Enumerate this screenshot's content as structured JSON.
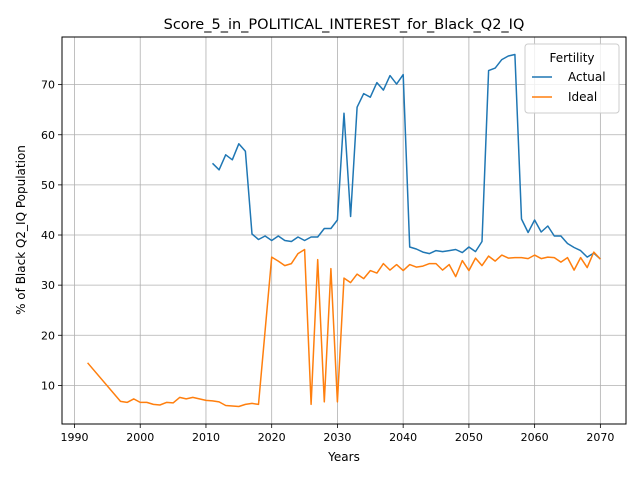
{
  "chart_data": {
    "type": "line",
    "title": "Score_5_in_POLITICAL_INTEREST_for_Black_Q2_IQ",
    "xlabel": "Years",
    "ylabel": "% of Black Q2_IQ Population",
    "xlim": [
      1988.1,
      2073.9
    ],
    "ylim": [
      2.3,
      79.5
    ],
    "xticks": [
      1990,
      2000,
      2010,
      2020,
      2030,
      2040,
      2050,
      2060,
      2070
    ],
    "yticks": [
      10,
      20,
      30,
      40,
      50,
      60,
      70
    ],
    "grid": true,
    "legend": {
      "title": "Fertility",
      "placement": "top-right"
    },
    "series": [
      {
        "name": "Actual",
        "color": "#1f77b4",
        "points": [
          [
            2011,
            54.3
          ],
          [
            2012,
            53.0
          ],
          [
            2013,
            56.0
          ],
          [
            2014,
            55.0
          ],
          [
            2015,
            58.2
          ],
          [
            2016,
            56.7
          ],
          [
            2017,
            40.2
          ],
          [
            2018,
            39.1
          ],
          [
            2019,
            39.8
          ],
          [
            2020,
            38.9
          ],
          [
            2021,
            39.8
          ],
          [
            2022,
            38.9
          ],
          [
            2023,
            38.7
          ],
          [
            2024,
            39.6
          ],
          [
            2025,
            38.9
          ],
          [
            2026,
            39.6
          ],
          [
            2027,
            39.6
          ],
          [
            2028,
            41.3
          ],
          [
            2029,
            41.3
          ],
          [
            2030,
            43.0
          ],
          [
            2031,
            64.3
          ],
          [
            2032,
            43.7
          ],
          [
            2033,
            65.5
          ],
          [
            2034,
            68.2
          ],
          [
            2035,
            67.5
          ],
          [
            2036,
            70.4
          ],
          [
            2037,
            68.9
          ],
          [
            2038,
            71.8
          ],
          [
            2039,
            70.1
          ],
          [
            2040,
            72.0
          ],
          [
            2041,
            37.6
          ],
          [
            2042,
            37.2
          ],
          [
            2043,
            36.6
          ],
          [
            2044,
            36.3
          ],
          [
            2045,
            36.9
          ],
          [
            2046,
            36.7
          ],
          [
            2047,
            36.9
          ],
          [
            2048,
            37.1
          ],
          [
            2049,
            36.5
          ],
          [
            2050,
            37.6
          ],
          [
            2051,
            36.7
          ],
          [
            2052,
            38.7
          ],
          [
            2053,
            72.8
          ],
          [
            2054,
            73.3
          ],
          [
            2055,
            75.0
          ],
          [
            2056,
            75.7
          ],
          [
            2057,
            76.0
          ],
          [
            2058,
            43.2
          ],
          [
            2059,
            40.5
          ],
          [
            2060,
            43.0
          ],
          [
            2061,
            40.6
          ],
          [
            2062,
            41.8
          ],
          [
            2063,
            39.8
          ],
          [
            2064,
            39.8
          ],
          [
            2065,
            38.3
          ],
          [
            2066,
            37.5
          ],
          [
            2067,
            36.9
          ],
          [
            2068,
            35.6
          ],
          [
            2069,
            36.4
          ],
          [
            2070,
            35.2
          ]
        ]
      },
      {
        "name": "Ideal",
        "color": "#ff7f0e",
        "points": [
          [
            1992,
            14.5
          ],
          [
            1997,
            6.8
          ],
          [
            1998,
            6.6
          ],
          [
            1999,
            7.3
          ],
          [
            2000,
            6.6
          ],
          [
            2001,
            6.6
          ],
          [
            2002,
            6.2
          ],
          [
            2003,
            6.1
          ],
          [
            2004,
            6.6
          ],
          [
            2005,
            6.5
          ],
          [
            2006,
            7.6
          ],
          [
            2007,
            7.3
          ],
          [
            2008,
            7.6
          ],
          [
            2009,
            7.3
          ],
          [
            2010,
            7.0
          ],
          [
            2011,
            6.9
          ],
          [
            2012,
            6.7
          ],
          [
            2013,
            6.0
          ],
          [
            2014,
            5.9
          ],
          [
            2015,
            5.8
          ],
          [
            2016,
            6.2
          ],
          [
            2017,
            6.4
          ],
          [
            2018,
            6.2
          ],
          [
            2020,
            35.6
          ],
          [
            2021,
            34.8
          ],
          [
            2022,
            33.9
          ],
          [
            2023,
            34.3
          ],
          [
            2024,
            36.3
          ],
          [
            2025,
            37.1
          ],
          [
            2026,
            6.2
          ],
          [
            2027,
            35.1
          ],
          [
            2028,
            6.7
          ],
          [
            2029,
            33.3
          ],
          [
            2030,
            6.7
          ],
          [
            2031,
            31.4
          ],
          [
            2032,
            30.5
          ],
          [
            2033,
            32.2
          ],
          [
            2034,
            31.3
          ],
          [
            2035,
            32.9
          ],
          [
            2036,
            32.4
          ],
          [
            2037,
            34.3
          ],
          [
            2038,
            33.0
          ],
          [
            2039,
            34.1
          ],
          [
            2040,
            32.9
          ],
          [
            2041,
            34.1
          ],
          [
            2042,
            33.6
          ],
          [
            2043,
            33.8
          ],
          [
            2044,
            34.3
          ],
          [
            2045,
            34.3
          ],
          [
            2046,
            33.0
          ],
          [
            2047,
            34.1
          ],
          [
            2048,
            31.7
          ],
          [
            2049,
            34.9
          ],
          [
            2050,
            32.9
          ],
          [
            2051,
            35.4
          ],
          [
            2052,
            33.9
          ],
          [
            2053,
            35.8
          ],
          [
            2054,
            34.8
          ],
          [
            2055,
            36.0
          ],
          [
            2056,
            35.4
          ],
          [
            2057,
            35.5
          ],
          [
            2058,
            35.5
          ],
          [
            2059,
            35.3
          ],
          [
            2060,
            36.0
          ],
          [
            2061,
            35.3
          ],
          [
            2062,
            35.6
          ],
          [
            2063,
            35.5
          ],
          [
            2064,
            34.6
          ],
          [
            2065,
            35.5
          ],
          [
            2066,
            33.0
          ],
          [
            2067,
            35.5
          ],
          [
            2068,
            33.5
          ],
          [
            2069,
            36.6
          ],
          [
            2070,
            35.2
          ]
        ]
      }
    ]
  }
}
